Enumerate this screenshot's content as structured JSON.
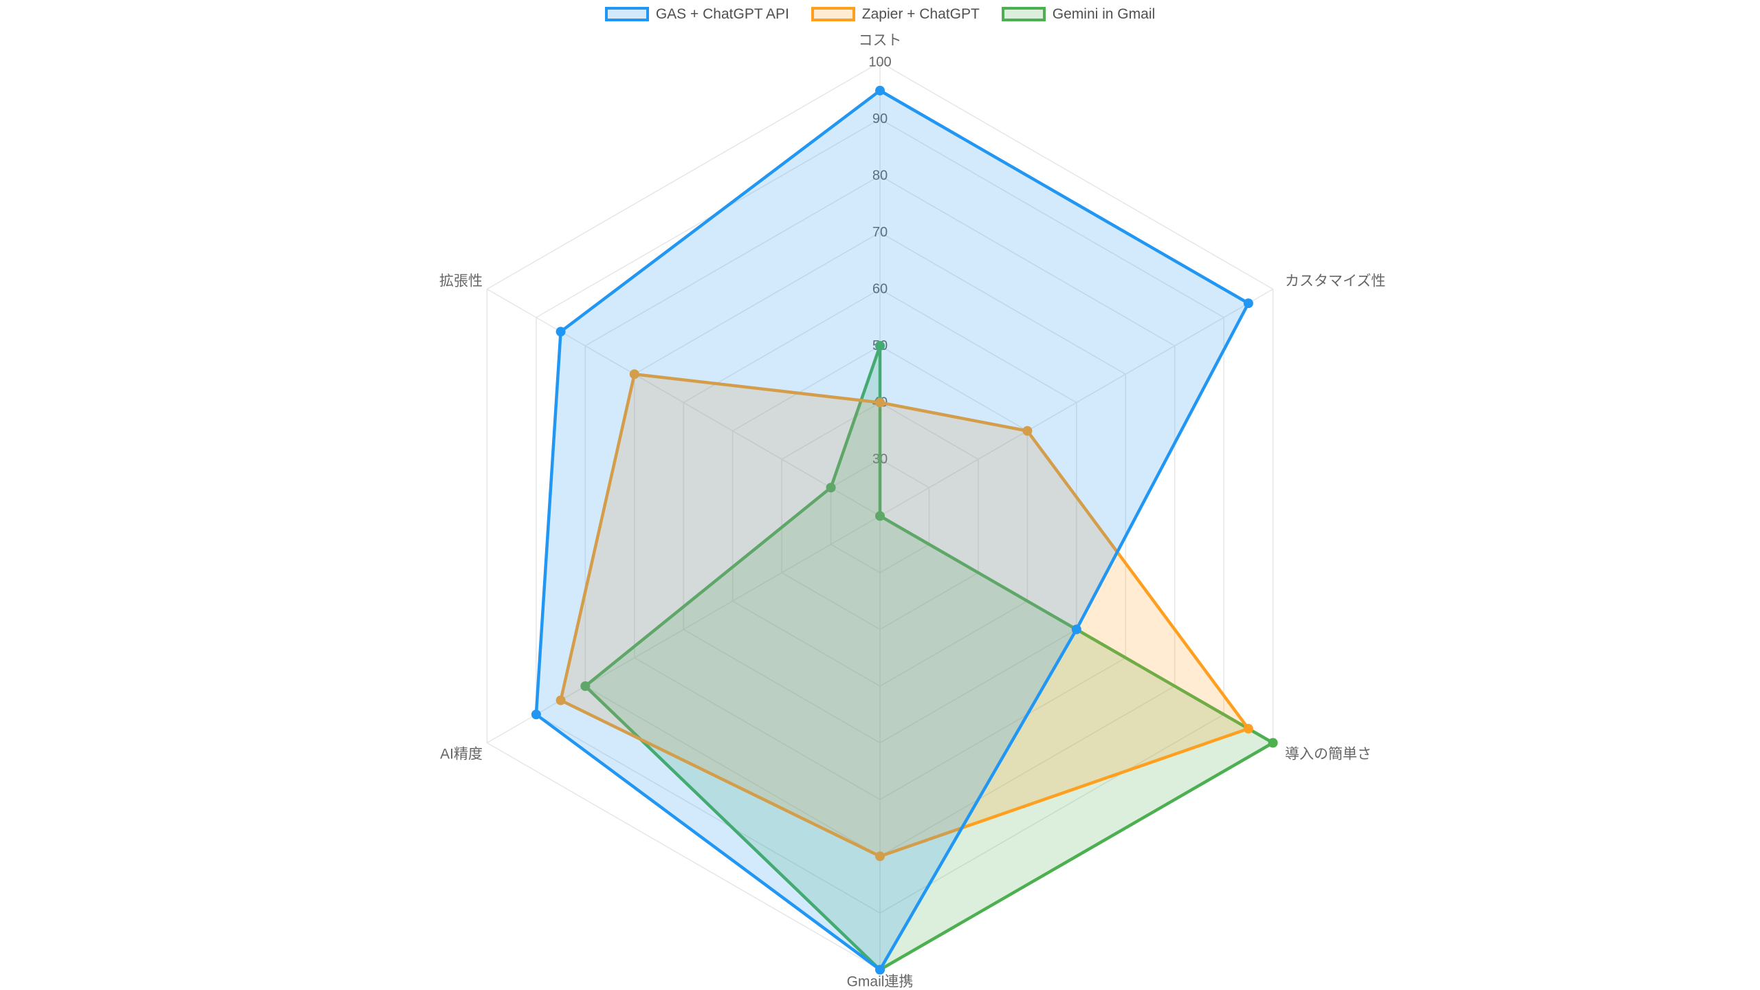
{
  "chart_data": {
    "type": "radar",
    "title": "",
    "categories": [
      "コスト",
      "カスタマイズ性",
      "導入の簡単さ",
      "Gmail連携",
      "AI精度",
      "拡張性"
    ],
    "series": [
      {
        "name": "GAS + ChatGPT API",
        "color": "#2196f3",
        "fill": "rgba(33,150,243,0.2)",
        "values": [
          95,
          95,
          60,
          100,
          90,
          85
        ]
      },
      {
        "name": "Zapier + ChatGPT",
        "color": "#ff9f1f",
        "fill": "rgba(255,159,31,0.2)",
        "values": [
          40,
          50,
          95,
          80,
          85,
          70
        ]
      },
      {
        "name": "Gemini in Gmail",
        "color": "#4caf50",
        "fill": "rgba(76,175,80,0.2)",
        "values": [
          50,
          20,
          100,
          100,
          80,
          30
        ]
      }
    ],
    "scale": {
      "min": 20,
      "max": 100,
      "tick_step": 10,
      "visible_ticks": [
        100,
        90,
        80,
        70,
        60,
        50,
        40,
        30
      ]
    },
    "legend_position": "top",
    "grid": true,
    "background": "#ffffff",
    "grid_color": "#e6e6e6",
    "text_color": "#666666",
    "legend_text_color": "#4f4f4f"
  }
}
